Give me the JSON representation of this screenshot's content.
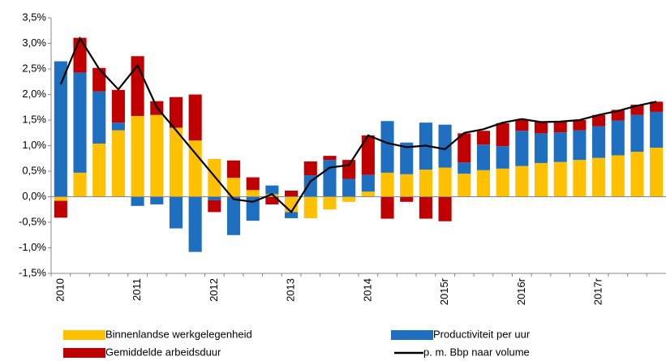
{
  "chart_data": {
    "type": "stacked-bar-line",
    "categories": [
      "2010",
      null,
      null,
      null,
      "2011",
      null,
      null,
      null,
      "2012",
      null,
      null,
      null,
      "2013",
      null,
      null,
      null,
      "2014",
      null,
      null,
      null,
      "2015r",
      null,
      null,
      null,
      "2016r",
      null,
      null,
      null,
      "2017r",
      null,
      null,
      null
    ],
    "series": [
      {
        "name": "Binnenlandse werkgelegenheid",
        "color": "#ffc000",
        "kind": "bar",
        "values": [
          -0.08,
          0.47,
          1.04,
          1.3,
          1.58,
          1.6,
          1.35,
          1.1,
          0.74,
          0.37,
          0.13,
          0.05,
          -0.3,
          -0.42,
          -0.25,
          -0.1,
          0.1,
          0.47,
          0.44,
          0.53,
          0.57,
          0.45,
          0.52,
          0.55,
          0.6,
          0.66,
          0.68,
          0.72,
          0.76,
          0.81,
          0.88,
          0.96
        ]
      },
      {
        "name": "Productiviteit per uur",
        "color": "#1f6fc0",
        "kind": "bar",
        "values": [
          2.65,
          1.96,
          1.02,
          0.15,
          -0.18,
          -0.15,
          -0.62,
          -1.08,
          -0.07,
          -0.75,
          -0.47,
          0.17,
          -0.12,
          0.42,
          0.72,
          0.35,
          0.33,
          1.01,
          0.62,
          0.92,
          0.84,
          0.22,
          0.5,
          0.44,
          0.69,
          0.58,
          0.58,
          0.58,
          0.62,
          0.68,
          0.72,
          0.7
        ]
      },
      {
        "name": "Gemiddelde arbeidsduur",
        "color": "#c00000",
        "kind": "bar",
        "values": [
          -0.33,
          0.68,
          0.46,
          0.64,
          1.17,
          0.27,
          0.6,
          0.9,
          -0.23,
          0.34,
          0.25,
          -0.15,
          0.12,
          0.27,
          0.08,
          0.37,
          0.77,
          -0.43,
          -0.1,
          -0.43,
          -0.48,
          0.57,
          0.27,
          0.45,
          0.22,
          0.22,
          0.21,
          0.2,
          0.22,
          0.21,
          0.2,
          0.2
        ]
      },
      {
        "name": "p. m. Bbp naar volume",
        "color": "#000000",
        "kind": "line",
        "values": [
          2.2,
          3.1,
          2.5,
          2.1,
          2.57,
          1.75,
          1.3,
          0.85,
          0.4,
          -0.05,
          -0.1,
          0.05,
          -0.3,
          0.3,
          0.57,
          0.62,
          1.2,
          1.05,
          0.97,
          1.0,
          0.93,
          1.25,
          1.32,
          1.45,
          1.52,
          1.46,
          1.47,
          1.5,
          1.6,
          1.68,
          1.78,
          1.86
        ]
      }
    ],
    "ylim": [
      -1.5,
      3.5
    ],
    "yticks": [
      {
        "value": -1.5,
        "label": "-1,5%"
      },
      {
        "value": -1.0,
        "label": "-1,0%"
      },
      {
        "value": -0.5,
        "label": "-0,5%"
      },
      {
        "value": 0,
        "label": "0,0%"
      },
      {
        "value": 0.5,
        "label": "0,5%"
      },
      {
        "value": 1.0,
        "label": "1,0%"
      },
      {
        "value": 1.5,
        "label": "1,5%"
      },
      {
        "value": 2.0,
        "label": "2,0%"
      },
      {
        "value": 2.5,
        "label": "2,5%"
      },
      {
        "value": 3.0,
        "label": "3,0%"
      },
      {
        "value": 3.5,
        "label": "3,5%"
      }
    ],
    "grid": false
  }
}
